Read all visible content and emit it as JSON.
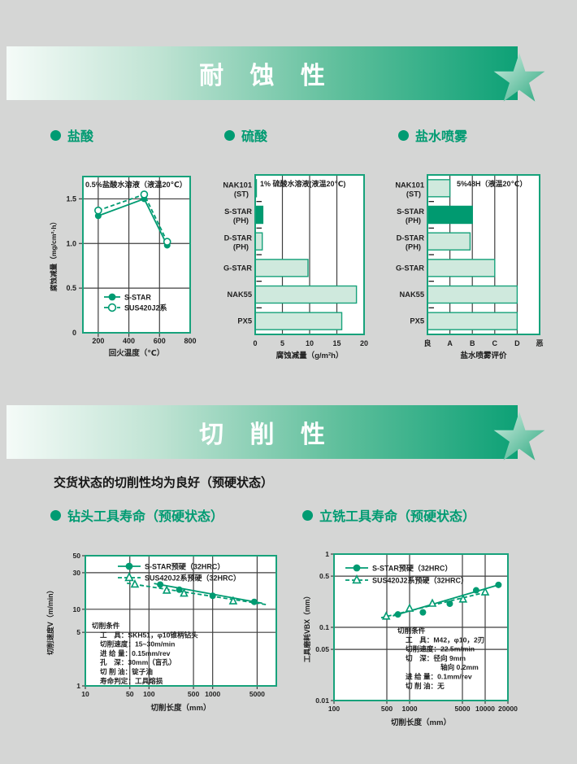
{
  "colors": {
    "accent": "#009b72",
    "chart_border": "#17a27b",
    "bar_fill": "#cfe9dd",
    "bar_highlight": "#009a70",
    "grid": "#3f3f3f",
    "text": "#1f1f1f",
    "banner_green": "#0da176",
    "star_light": "#d8f0e5",
    "star_dark": "#2aa87f"
  },
  "banners": [
    {
      "title": "耐 蚀 性"
    },
    {
      "title": "切 削 性"
    }
  ],
  "sections": [
    {
      "label": "盐酸"
    },
    {
      "label": "硫酸"
    },
    {
      "label": "盐水喷雾"
    },
    {
      "label": "钻头工具寿命（预硬状态）"
    },
    {
      "label": "立铣工具寿命（预硬状态）"
    }
  ],
  "intro_text": "交货状态的切削性均为良好（预硬状态）",
  "chart_data": [
    {
      "id": "hcl",
      "type": "line",
      "title": "0.5%盐酸水溶液（液温20℃）",
      "xlabel": "回火温度（℃）",
      "ylabel": "腐蚀减量（mg/cm²·h）",
      "xlim": [
        100,
        800
      ],
      "ylim": [
        0,
        1.75
      ],
      "xticks": [
        200,
        400,
        600,
        800
      ],
      "xtick_labels": [
        "200",
        "400",
        "600",
        "800"
      ],
      "yticks": [
        0,
        0.5,
        1.0,
        1.5
      ],
      "ytick_labels": [
        "0",
        "0.5",
        "1.0",
        "1.5"
      ],
      "series": [
        {
          "name": "S-STAR",
          "marker": "circle-filled",
          "line": "solid",
          "points": [
            [
              200,
              1.31
            ],
            [
              500,
              1.5
            ],
            [
              650,
              0.98
            ]
          ]
        },
        {
          "name": "SUS420J2系",
          "marker": "circle-open",
          "line": "dashed",
          "points": [
            [
              200,
              1.37
            ],
            [
              500,
              1.55
            ],
            [
              650,
              1.02
            ]
          ]
        }
      ]
    },
    {
      "id": "h2so4",
      "type": "hbar",
      "title": "1% 硫酸水溶液(液温20℃)",
      "xlabel": "腐蚀减量（g/m²h）",
      "categories": [
        [
          "NAK101",
          "(ST)"
        ],
        [
          "S-STAR",
          "(PH)"
        ],
        [
          "D-STAR",
          "(PH)"
        ],
        [
          "G-STAR"
        ],
        [
          "NAK55"
        ],
        [
          "PX5"
        ]
      ],
      "values": [
        0.1,
        1.4,
        1.3,
        9.7,
        18.6,
        15.9
      ],
      "highlight_index": 1,
      "xlim": [
        0,
        20
      ],
      "xticks": [
        0,
        5,
        10,
        15,
        20
      ],
      "xtick_labels": [
        "0",
        "5",
        "10",
        "15",
        "20"
      ]
    },
    {
      "id": "salt",
      "type": "hbar",
      "title": "5%48H（液温20℃）",
      "xlabel": "盐水喷雾评价",
      "categories": [
        [
          "NAK101",
          "(ST)"
        ],
        [
          "S-STAR",
          "(PH)"
        ],
        [
          "D-STAR",
          "(PH)"
        ],
        [
          "G-STAR"
        ],
        [
          "NAK55"
        ],
        [
          "PX5"
        ]
      ],
      "values": [
        1.0,
        2.0,
        1.9,
        3.0,
        4.0,
        4.0
      ],
      "highlight_index": 1,
      "xlim": [
        0,
        5
      ],
      "xticks": [
        0,
        1,
        2,
        3,
        4,
        5
      ],
      "xtick_labels": [
        "良",
        "A",
        "B",
        "C",
        "D",
        "恶"
      ]
    },
    {
      "id": "drill",
      "type": "loglog",
      "xlabel": "切削长度（mm）",
      "ylabel": "切削速度V（m/min）",
      "xlim": [
        10,
        10000
      ],
      "ylim": [
        1,
        50
      ],
      "xticks": [
        10,
        50,
        100,
        500,
        1000,
        5000
      ],
      "xtick_labels": [
        "10",
        "50",
        "100",
        "500",
        "1000",
        "5000"
      ],
      "yticks": [
        1,
        5,
        10,
        30,
        50
      ],
      "ytick_labels": [
        "1",
        "5",
        "10",
        "30",
        "50"
      ],
      "series": [
        {
          "name": "S-STAR预硬（32HRC）",
          "marker": "circle-filled",
          "line": "solid",
          "points": [
            [
              150,
              21
            ],
            [
              300,
              18
            ],
            [
              1000,
              15
            ],
            [
              4500,
              12.5
            ]
          ],
          "trend": [
            [
              120,
              21.7
            ],
            [
              6000,
              12.0
            ]
          ]
        },
        {
          "name": "SUS420J2系预硬（32HRC）",
          "marker": "triangle-open",
          "line": "dashed",
          "points": [
            [
              60,
              21
            ],
            [
              190,
              17.5
            ],
            [
              355,
              16
            ],
            [
              2100,
              12.7
            ]
          ],
          "trend": [
            [
              45,
              21.9
            ],
            [
              7000,
              11.5
            ]
          ]
        }
      ],
      "conditions": [
        "切削条件",
        "工　具：SKH51，φ10锥柄钻头",
        "切削速度：15~30m/min",
        "进 给 量：0.15mm/rev",
        "孔　深：30mm（盲孔）",
        "切 削 油：锭子油",
        "寿命判定：工具熔损"
      ]
    },
    {
      "id": "endmill",
      "type": "loglog",
      "xlabel": "切削长度（mm）",
      "ylabel": "工具磨耗VBX（mm）",
      "xlim": [
        100,
        20000
      ],
      "ylim": [
        0.01,
        1
      ],
      "xticks": [
        100,
        500,
        1000,
        5000,
        10000,
        20000
      ],
      "xtick_labels": [
        "100",
        "500",
        "1000",
        "5000",
        "10000",
        "20000"
      ],
      "yticks": [
        0.01,
        0.05,
        0.1,
        0.5,
        1
      ],
      "ytick_labels": [
        "0.01",
        "0.05",
        "0.1",
        "0.5",
        "1"
      ],
      "series": [
        {
          "name": "S-STAR预硬（32HRC）",
          "marker": "circle-filled",
          "line": "solid",
          "points": [
            [
              700,
              0.15
            ],
            [
              1500,
              0.16
            ],
            [
              3400,
              0.21
            ],
            [
              7600,
              0.32
            ],
            [
              15000,
              0.38
            ]
          ],
          "trend": [
            [
              600,
              0.143
            ],
            [
              16000,
              0.387
            ]
          ]
        },
        {
          "name": "SUS420J2系预硬（32HRC）",
          "marker": "triangle-open",
          "line": "dashed",
          "points": [
            [
              490,
              0.14
            ],
            [
              1000,
              0.18
            ],
            [
              2000,
              0.21
            ],
            [
              5100,
              0.24
            ],
            [
              10000,
              0.3
            ]
          ],
          "trend": [
            [
              420,
              0.135
            ],
            [
              11000,
              0.307
            ]
          ]
        }
      ],
      "conditions": [
        "切削条件",
        "工　具：M42，φ10，2刃",
        "切削速度：22.5m/min",
        "切　深：径向 9mm",
        "　　　　　轴向 0.2mm",
        "进 给 量：0.1mm/rev",
        "切 削 油：无"
      ]
    }
  ]
}
